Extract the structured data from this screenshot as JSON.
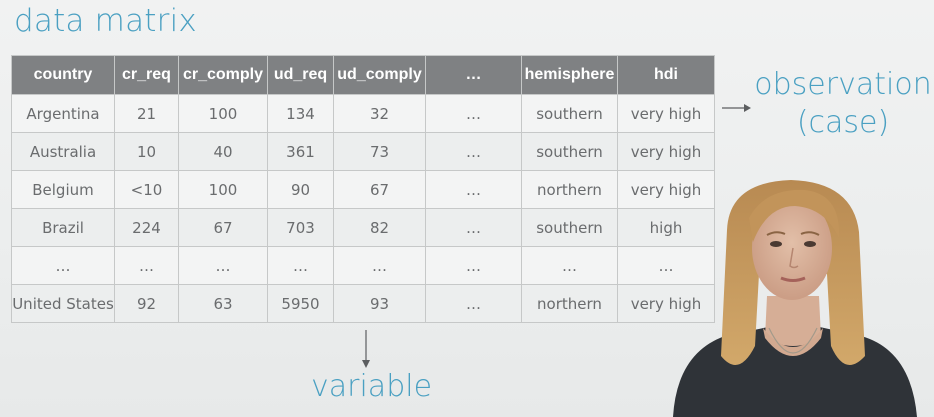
{
  "slide": {
    "title": "data matrix",
    "observation_label_line1": "observation",
    "observation_label_line2": "(case)",
    "variable_label": "variable"
  },
  "table": {
    "columns": [
      "country",
      "cr_req",
      "cr_comply",
      "ud_req",
      "ud_comply",
      "…",
      "hemisphere",
      "hdi"
    ],
    "rows": [
      [
        "Argentina",
        "21",
        "100",
        "134",
        "32",
        "…",
        "southern",
        "very high"
      ],
      [
        "Australia",
        "10",
        "40",
        "361",
        "73",
        "…",
        "southern",
        "very high"
      ],
      [
        "Belgium",
        "<10",
        "100",
        "90",
        "67",
        "…",
        "northern",
        "very high"
      ],
      [
        "Brazil",
        "224",
        "67",
        "703",
        "82",
        "…",
        "southern",
        "high"
      ],
      [
        "…",
        "…",
        "…",
        "…",
        "…",
        "…",
        "…",
        "…"
      ],
      [
        "United States",
        "92",
        "63",
        "5950",
        "93",
        "…",
        "northern",
        "very high"
      ]
    ]
  },
  "colors": {
    "accent": "#4aa0c2",
    "header_bg": "#7f8183",
    "header_text": "#ffffff",
    "cell_text": "#6a6c6e",
    "grid": "#c6c8c8"
  }
}
